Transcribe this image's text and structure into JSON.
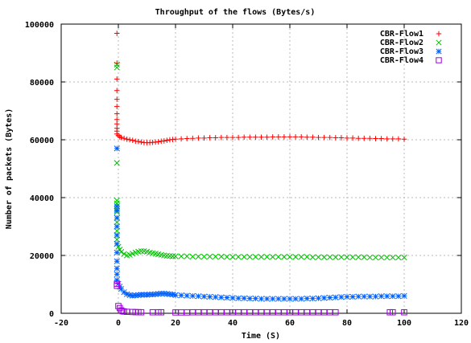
{
  "chart_data": {
    "type": "scatter",
    "title": "Throughput of the flows (Bytes/s)",
    "xlabel": "Time (S)",
    "ylabel": "Number of packets (Bytes)",
    "xlim": [
      -20,
      120
    ],
    "ylim": [
      0,
      100000
    ],
    "xticks": [
      -20,
      0,
      20,
      40,
      60,
      80,
      100,
      120
    ],
    "yticks": [
      0,
      20000,
      40000,
      60000,
      80000,
      100000
    ],
    "x_tick_labels": [
      "-20",
      "0",
      "20",
      "40",
      "60",
      "80",
      "100",
      "120"
    ],
    "y_tick_labels": [
      "0",
      "20000",
      "40000",
      "60000",
      "80000",
      "100000"
    ],
    "grid": true,
    "legend_position": "top-right",
    "series": [
      {
        "name": "CBR-Flow1",
        "color": "#ff0000",
        "marker": "plus",
        "points": [
          [
            -0.5,
            96800
          ],
          [
            -0.5,
            86500
          ],
          [
            -0.5,
            81000
          ],
          [
            -0.5,
            77000
          ],
          [
            -0.5,
            74000
          ],
          [
            -0.5,
            71500
          ],
          [
            -0.5,
            69000
          ],
          [
            -0.5,
            67000
          ],
          [
            -0.5,
            65500
          ],
          [
            -0.5,
            64000
          ],
          [
            -0.5,
            63000
          ],
          [
            -0.5,
            62000
          ],
          [
            0,
            61500
          ],
          [
            0.5,
            61000
          ],
          [
            1,
            60800
          ],
          [
            2,
            60500
          ],
          [
            3,
            60200
          ],
          [
            4,
            60000
          ],
          [
            5,
            59800
          ],
          [
            6,
            59500
          ],
          [
            7,
            59400
          ],
          [
            8,
            59200
          ],
          [
            9,
            59000
          ],
          [
            10,
            59000
          ],
          [
            11,
            59000
          ],
          [
            12,
            59100
          ],
          [
            13,
            59200
          ],
          [
            14,
            59300
          ],
          [
            15,
            59500
          ],
          [
            16,
            59600
          ],
          [
            17,
            59800
          ],
          [
            18,
            60000
          ],
          [
            19,
            60100
          ],
          [
            20,
            60200
          ],
          [
            22,
            60300
          ],
          [
            24,
            60400
          ],
          [
            26,
            60500
          ],
          [
            28,
            60600
          ],
          [
            30,
            60600
          ],
          [
            32,
            60700
          ],
          [
            34,
            60700
          ],
          [
            36,
            60800
          ],
          [
            38,
            60800
          ],
          [
            40,
            60800
          ],
          [
            42,
            60800
          ],
          [
            44,
            60900
          ],
          [
            46,
            60900
          ],
          [
            48,
            60900
          ],
          [
            50,
            60900
          ],
          [
            52,
            60900
          ],
          [
            54,
            61000
          ],
          [
            56,
            61000
          ],
          [
            58,
            61000
          ],
          [
            60,
            61000
          ],
          [
            62,
            61000
          ],
          [
            64,
            61000
          ],
          [
            66,
            60900
          ],
          [
            68,
            60900
          ],
          [
            70,
            60800
          ],
          [
            72,
            60800
          ],
          [
            74,
            60800
          ],
          [
            76,
            60700
          ],
          [
            78,
            60700
          ],
          [
            80,
            60600
          ],
          [
            82,
            60600
          ],
          [
            84,
            60500
          ],
          [
            86,
            60500
          ],
          [
            88,
            60500
          ],
          [
            90,
            60400
          ],
          [
            92,
            60400
          ],
          [
            94,
            60300
          ],
          [
            96,
            60300
          ],
          [
            98,
            60300
          ],
          [
            100,
            60200
          ]
        ]
      },
      {
        "name": "CBR-Flow2",
        "color": "#00c000",
        "marker": "x",
        "points": [
          [
            -0.5,
            86000
          ],
          [
            -0.5,
            85000
          ],
          [
            -0.5,
            52000
          ],
          [
            -0.5,
            39000
          ],
          [
            -0.5,
            38000
          ],
          [
            -0.5,
            36000
          ],
          [
            -0.5,
            35000
          ],
          [
            -0.5,
            33000
          ],
          [
            -0.5,
            31500
          ],
          [
            -0.5,
            30000
          ],
          [
            -0.5,
            28500
          ],
          [
            -0.5,
            27000
          ],
          [
            -0.5,
            25500
          ],
          [
            -0.5,
            24000
          ],
          [
            0,
            23000
          ],
          [
            0.5,
            22000
          ],
          [
            1,
            21200
          ],
          [
            2,
            20500
          ],
          [
            3,
            20000
          ],
          [
            4,
            20200
          ],
          [
            5,
            20600
          ],
          [
            6,
            21000
          ],
          [
            7,
            21300
          ],
          [
            8,
            21500
          ],
          [
            9,
            21500
          ],
          [
            10,
            21300
          ],
          [
            11,
            21000
          ],
          [
            12,
            20800
          ],
          [
            13,
            20600
          ],
          [
            14,
            20400
          ],
          [
            15,
            20200
          ],
          [
            16,
            20000
          ],
          [
            17,
            19900
          ],
          [
            18,
            19800
          ],
          [
            19,
            19700
          ],
          [
            20,
            19700
          ],
          [
            22,
            19700
          ],
          [
            24,
            19700
          ],
          [
            26,
            19600
          ],
          [
            28,
            19600
          ],
          [
            30,
            19600
          ],
          [
            32,
            19600
          ],
          [
            34,
            19600
          ],
          [
            36,
            19600
          ],
          [
            38,
            19500
          ],
          [
            40,
            19500
          ],
          [
            42,
            19500
          ],
          [
            44,
            19500
          ],
          [
            46,
            19500
          ],
          [
            48,
            19500
          ],
          [
            50,
            19500
          ],
          [
            52,
            19500
          ],
          [
            54,
            19500
          ],
          [
            56,
            19500
          ],
          [
            58,
            19500
          ],
          [
            60,
            19500
          ],
          [
            62,
            19500
          ],
          [
            64,
            19500
          ],
          [
            66,
            19500
          ],
          [
            68,
            19400
          ],
          [
            70,
            19400
          ],
          [
            72,
            19400
          ],
          [
            74,
            19400
          ],
          [
            76,
            19400
          ],
          [
            78,
            19400
          ],
          [
            80,
            19400
          ],
          [
            82,
            19400
          ],
          [
            84,
            19400
          ],
          [
            86,
            19400
          ],
          [
            88,
            19300
          ],
          [
            90,
            19300
          ],
          [
            92,
            19300
          ],
          [
            94,
            19300
          ],
          [
            96,
            19300
          ],
          [
            98,
            19300
          ],
          [
            100,
            19300
          ]
        ]
      },
      {
        "name": "CBR-Flow3",
        "color": "#0060ff",
        "marker": "star",
        "points": [
          [
            -0.5,
            57000
          ],
          [
            -0.5,
            37000
          ],
          [
            -0.5,
            35500
          ],
          [
            -0.5,
            33000
          ],
          [
            -0.5,
            30000
          ],
          [
            -0.5,
            27000
          ],
          [
            -0.5,
            24000
          ],
          [
            -0.5,
            21000
          ],
          [
            -0.5,
            18000
          ],
          [
            -0.5,
            15500
          ],
          [
            -0.5,
            13500
          ],
          [
            -0.5,
            11500
          ],
          [
            0,
            10200
          ],
          [
            0.5,
            9200
          ],
          [
            1,
            8400
          ],
          [
            2,
            7300
          ],
          [
            3,
            6600
          ],
          [
            4,
            6300
          ],
          [
            5,
            6100
          ],
          [
            6,
            6200
          ],
          [
            7,
            6300
          ],
          [
            8,
            6400
          ],
          [
            9,
            6400
          ],
          [
            10,
            6400
          ],
          [
            11,
            6500
          ],
          [
            12,
            6500
          ],
          [
            13,
            6600
          ],
          [
            14,
            6700
          ],
          [
            15,
            6800
          ],
          [
            16,
            6800
          ],
          [
            17,
            6700
          ],
          [
            18,
            6600
          ],
          [
            19,
            6500
          ],
          [
            20,
            6300
          ],
          [
            22,
            6200
          ],
          [
            24,
            6100
          ],
          [
            26,
            6000
          ],
          [
            28,
            5900
          ],
          [
            30,
            5800
          ],
          [
            32,
            5700
          ],
          [
            34,
            5600
          ],
          [
            36,
            5500
          ],
          [
            38,
            5400
          ],
          [
            40,
            5300
          ],
          [
            42,
            5200
          ],
          [
            44,
            5200
          ],
          [
            46,
            5100
          ],
          [
            48,
            5100
          ],
          [
            50,
            5000
          ],
          [
            52,
            5000
          ],
          [
            54,
            5000
          ],
          [
            56,
            5000
          ],
          [
            58,
            5000
          ],
          [
            60,
            5000
          ],
          [
            62,
            5000
          ],
          [
            64,
            5000
          ],
          [
            66,
            5100
          ],
          [
            68,
            5100
          ],
          [
            70,
            5200
          ],
          [
            72,
            5300
          ],
          [
            74,
            5400
          ],
          [
            76,
            5500
          ],
          [
            78,
            5600
          ],
          [
            80,
            5700
          ],
          [
            82,
            5700
          ],
          [
            84,
            5800
          ],
          [
            86,
            5800
          ],
          [
            88,
            5800
          ],
          [
            90,
            5800
          ],
          [
            92,
            5900
          ],
          [
            94,
            5900
          ],
          [
            96,
            5900
          ],
          [
            98,
            5900
          ],
          [
            100,
            6000
          ]
        ]
      },
      {
        "name": "CBR-Flow4",
        "color": "#a000e0",
        "marker": "square",
        "points": [
          [
            -0.5,
            10200
          ],
          [
            -0.5,
            9500
          ],
          [
            0,
            2500
          ],
          [
            0.5,
            1800
          ],
          [
            1,
            1000
          ],
          [
            1.5,
            700
          ],
          [
            2,
            600
          ],
          [
            3,
            500
          ],
          [
            5,
            450
          ],
          [
            6,
            400
          ],
          [
            7,
            380
          ],
          [
            8,
            350
          ],
          [
            12,
            350
          ],
          [
            14,
            350
          ],
          [
            15,
            350
          ],
          [
            20,
            300
          ],
          [
            22,
            300
          ],
          [
            24,
            300
          ],
          [
            26,
            350
          ],
          [
            28,
            350
          ],
          [
            30,
            350
          ],
          [
            32,
            350
          ],
          [
            34,
            350
          ],
          [
            36,
            350
          ],
          [
            38,
            350
          ],
          [
            40,
            350
          ],
          [
            42,
            350
          ],
          [
            44,
            350
          ],
          [
            46,
            350
          ],
          [
            48,
            350
          ],
          [
            50,
            350
          ],
          [
            52,
            350
          ],
          [
            54,
            350
          ],
          [
            56,
            350
          ],
          [
            58,
            350
          ],
          [
            60,
            350
          ],
          [
            62,
            350
          ],
          [
            64,
            350
          ],
          [
            66,
            350
          ],
          [
            68,
            350
          ],
          [
            70,
            350
          ],
          [
            72,
            350
          ],
          [
            74,
            350
          ],
          [
            76,
            350
          ],
          [
            95,
            350
          ],
          [
            96,
            350
          ],
          [
            100,
            350
          ]
        ]
      }
    ]
  }
}
